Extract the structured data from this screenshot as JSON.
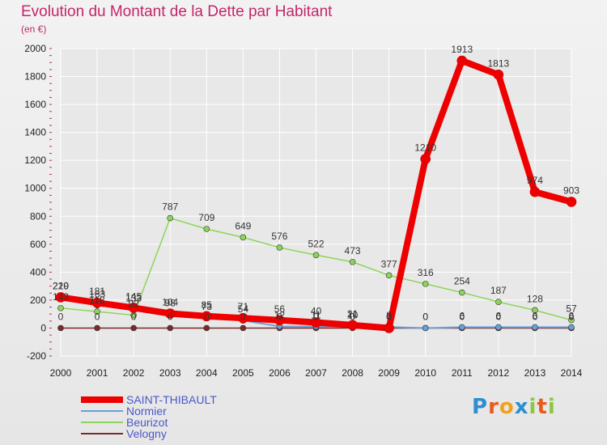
{
  "title": "Evolution du Montant de la Dette par Habitant",
  "subtitle": "(en €)",
  "logo_text": "Proxiti",
  "colors": {
    "title": "#c4266a",
    "axis_text": "#222222",
    "grid": "#ffffff",
    "legend_text": "#4a58c8"
  },
  "chart_data": {
    "type": "line",
    "x": [
      2000,
      2001,
      2002,
      2003,
      2004,
      2005,
      2006,
      2007,
      2008,
      2009,
      2010,
      2011,
      2012,
      2013,
      2014
    ],
    "ylim": [
      -200,
      2000
    ],
    "yticks": [
      -200,
      0,
      200,
      400,
      600,
      800,
      1000,
      1200,
      1400,
      1600,
      1800,
      2000
    ],
    "legend_position": "bottom-left",
    "grid": true,
    "series": [
      {
        "name": "SAINT-THIBAULT",
        "color": "#ee0000",
        "width": 8,
        "values": [
          220,
          181,
          145,
          104,
          85,
          71,
          56,
          40,
          21,
          0,
          1210,
          1913,
          1813,
          974,
          903
        ],
        "labels": [
          "220",
          "181",
          "145",
          "104",
          "85",
          "71",
          "56",
          "40",
          "21",
          "0",
          "1210",
          "1913",
          "1813",
          "974",
          "903"
        ]
      },
      {
        "name": "Normier",
        "color": "#6aa0d8",
        "width": 2,
        "values": [
          219,
          163,
          133,
          98,
          73,
          54,
          12,
          11,
          10,
          8,
          0,
          6,
          6,
          6,
          6
        ],
        "labels": [
          "219",
          "163",
          "133",
          "98",
          "73",
          "54",
          "12",
          "11",
          "10",
          "8",
          "0",
          "6",
          "6",
          "6",
          "6"
        ]
      },
      {
        "name": "Beurizot",
        "color": "#8ed45a",
        "width": 1.5,
        "values": [
          143,
          118,
          92,
          787,
          709,
          649,
          576,
          522,
          473,
          377,
          316,
          254,
          187,
          128,
          57
        ],
        "labels": [
          "143",
          "118",
          "92",
          "787",
          "709",
          "649",
          "576",
          "522",
          "473",
          "377",
          "316",
          "254",
          "187",
          "128",
          "57"
        ]
      },
      {
        "name": "Velogny",
        "color": "#7a2a2a",
        "width": 1.5,
        "values": [
          0,
          0,
          0,
          0,
          0,
          0,
          0,
          0,
          0,
          0,
          0,
          0,
          0,
          0,
          0
        ],
        "labels": [
          "0",
          "0",
          "0",
          "0",
          "0",
          "0",
          "0",
          "0",
          "0",
          "0",
          "0",
          "0",
          "0",
          "0",
          "0"
        ]
      }
    ]
  }
}
